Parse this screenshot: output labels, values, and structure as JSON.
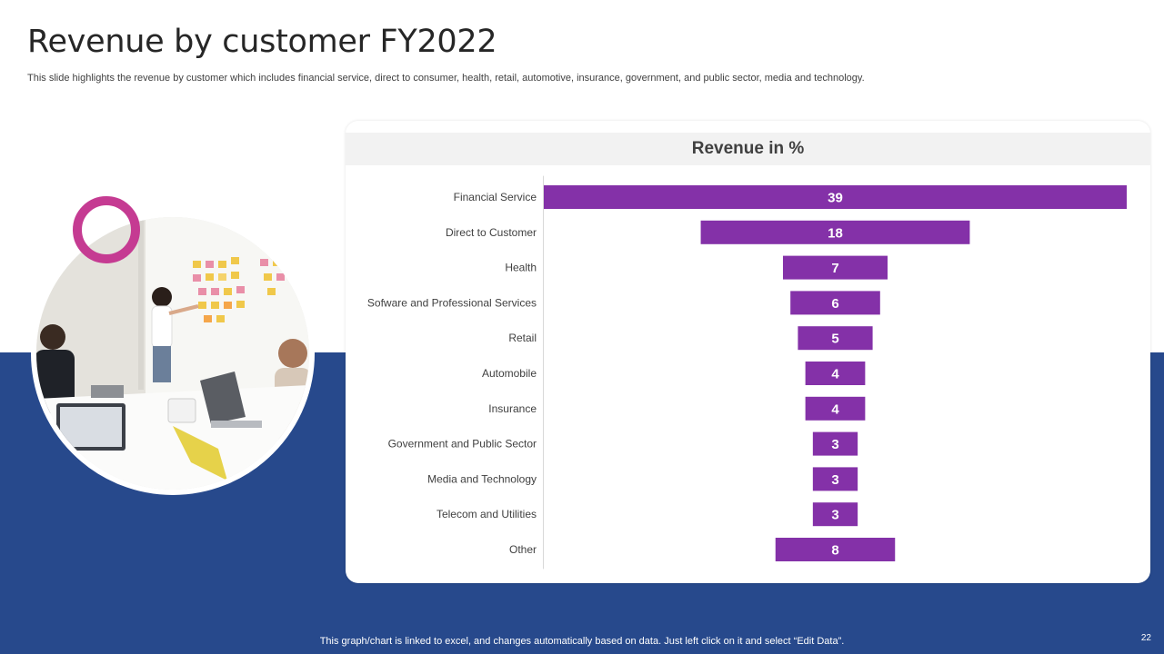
{
  "slide": {
    "title": "Revenue by customer FY2022",
    "subtitle": "This slide highlights the revenue by customer which includes financial service, direct to consumer, health, retail, automotive, insurance, government, and public sector, media and technology.",
    "footer_note": "This graph/chart is linked to excel, and changes automatically based on data. Just left click on it and select “Edit Data”.",
    "page_number": "22"
  },
  "colors": {
    "bar": "#8431a8",
    "background_band": "#27498c",
    "accent_ring": "#c53b92"
  },
  "photo": {
    "icon": "office-meeting-photo"
  },
  "chart_data": {
    "type": "bar",
    "orientation": "horizontal",
    "style": "funnel-centered",
    "title": "Revenue in %",
    "categories": [
      "Financial Service",
      "Direct to Customer",
      "Health",
      "Sofware and Professional Services",
      "Retail",
      "Automobile",
      "Insurance",
      "Government and Public Sector",
      "Media and Technology",
      "Telecom and Utilities",
      "Other"
    ],
    "values": [
      39,
      18,
      7,
      6,
      5,
      4,
      4,
      3,
      3,
      3,
      8
    ],
    "data_labels": [
      "39",
      "18",
      "7",
      "6",
      "5",
      "4",
      "4",
      "3",
      "3",
      "3",
      "8"
    ],
    "grid": false,
    "legend": "none"
  }
}
